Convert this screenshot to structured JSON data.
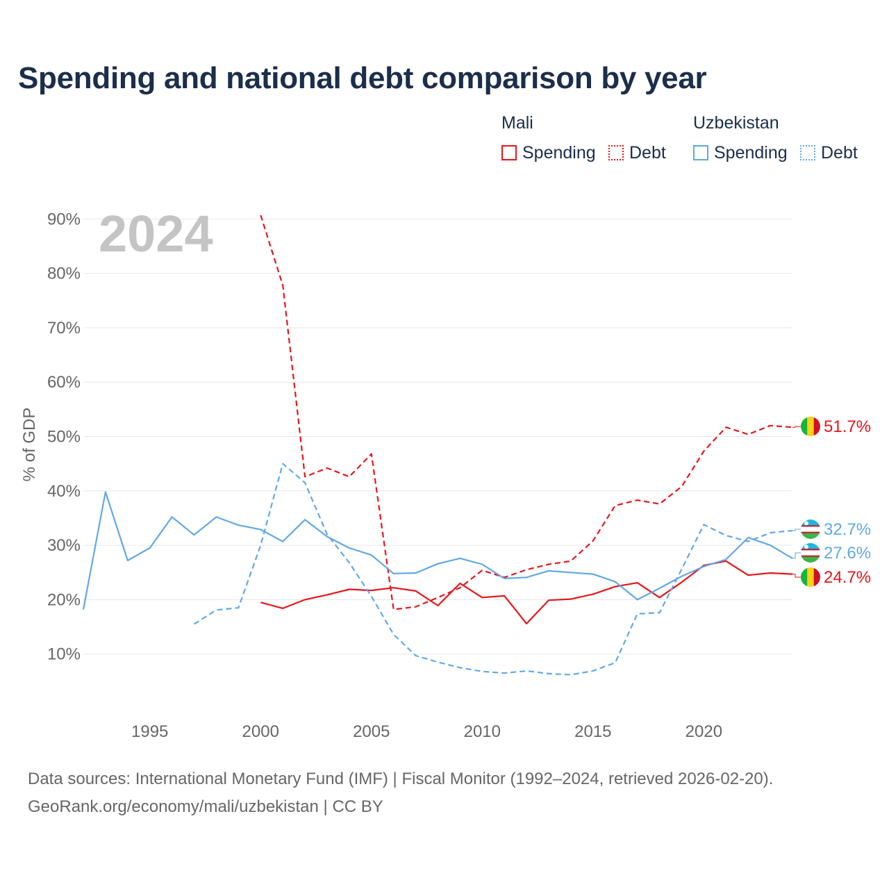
{
  "title": "Spending and national debt comparison by year",
  "legend": {
    "groups": [
      {
        "country": "Mali",
        "spending_label": "Spending",
        "debt_label": "Debt",
        "color": "#e8141a"
      },
      {
        "country": "Uzbekistan",
        "spending_label": "Spending",
        "debt_label": "Debt",
        "color": "#60a8e6"
      }
    ]
  },
  "footer": {
    "line1": "Data sources: International Monetary Fund (IMF) | Fiscal Monitor (1992–2024, retrieved 2026-02-20).",
    "line2": "GeoRank.org/economy/mali/uzbekistan | CC BY"
  },
  "chart_data": {
    "type": "line",
    "title": "Spending and national debt comparison by year",
    "year_watermark": "2024",
    "ylabel": "% of GDP",
    "xlabel": "",
    "xlim": [
      1992,
      2024
    ],
    "ylim": [
      0,
      90
    ],
    "x_ticks": [
      1995,
      2000,
      2005,
      2010,
      2015,
      2020
    ],
    "y_ticks": [
      10,
      20,
      30,
      40,
      50,
      60,
      70,
      80,
      90
    ],
    "y_tick_format": "{v}%",
    "grid": true,
    "series": [
      {
        "name": "Mali Spending",
        "country": "Mali",
        "kind": "spending",
        "color": "#e8141a",
        "dashed": false,
        "end_label": "24.7%",
        "points": [
          [
            2000,
            19.5
          ],
          [
            2001,
            18.4
          ],
          [
            2002,
            20.0
          ],
          [
            2003,
            20.9
          ],
          [
            2004,
            21.9
          ],
          [
            2005,
            21.7
          ],
          [
            2006,
            22.2
          ],
          [
            2007,
            21.6
          ],
          [
            2008,
            18.9
          ],
          [
            2009,
            23.0
          ],
          [
            2010,
            20.4
          ],
          [
            2011,
            20.7
          ],
          [
            2012,
            15.6
          ],
          [
            2013,
            19.9
          ],
          [
            2014,
            20.1
          ],
          [
            2015,
            21.0
          ],
          [
            2016,
            22.4
          ],
          [
            2017,
            23.1
          ],
          [
            2018,
            20.4
          ],
          [
            2019,
            23.2
          ],
          [
            2020,
            26.3
          ],
          [
            2021,
            27.1
          ],
          [
            2022,
            24.5
          ],
          [
            2023,
            24.9
          ],
          [
            2024,
            24.7
          ]
        ]
      },
      {
        "name": "Mali Debt",
        "country": "Mali",
        "kind": "debt",
        "color": "#e8141a",
        "dashed": true,
        "end_label": "51.7%",
        "points": [
          [
            2000,
            90.7
          ],
          [
            2001,
            77.8
          ],
          [
            2002,
            42.6
          ],
          [
            2003,
            44.2
          ],
          [
            2004,
            42.6
          ],
          [
            2005,
            46.8
          ],
          [
            2006,
            18.2
          ],
          [
            2007,
            18.7
          ],
          [
            2008,
            20.4
          ],
          [
            2009,
            22.2
          ],
          [
            2010,
            25.4
          ],
          [
            2011,
            24.1
          ],
          [
            2012,
            25.5
          ],
          [
            2013,
            26.5
          ],
          [
            2014,
            27.1
          ],
          [
            2015,
            30.8
          ],
          [
            2016,
            37.3
          ],
          [
            2017,
            38.3
          ],
          [
            2018,
            37.6
          ],
          [
            2019,
            40.8
          ],
          [
            2020,
            47.3
          ],
          [
            2021,
            51.7
          ],
          [
            2022,
            50.4
          ],
          [
            2023,
            52.0
          ],
          [
            2024,
            51.7
          ]
        ]
      },
      {
        "name": "Uzbekistan Spending",
        "country": "Uzbekistan",
        "kind": "spending",
        "color": "#60a8e6",
        "dashed": false,
        "end_label": "27.6%",
        "points": [
          [
            1992,
            18.2
          ],
          [
            1993,
            39.8
          ],
          [
            1994,
            27.2
          ],
          [
            1995,
            29.5
          ],
          [
            1996,
            35.2
          ],
          [
            1997,
            31.9
          ],
          [
            1998,
            35.2
          ],
          [
            1999,
            33.7
          ],
          [
            2000,
            32.9
          ],
          [
            2001,
            30.7
          ],
          [
            2002,
            34.7
          ],
          [
            2003,
            31.6
          ],
          [
            2004,
            29.5
          ],
          [
            2005,
            28.2
          ],
          [
            2006,
            24.8
          ],
          [
            2007,
            24.9
          ],
          [
            2008,
            26.6
          ],
          [
            2009,
            27.6
          ],
          [
            2010,
            26.5
          ],
          [
            2011,
            23.9
          ],
          [
            2012,
            24.1
          ],
          [
            2013,
            25.3
          ],
          [
            2014,
            25.0
          ],
          [
            2015,
            24.7
          ],
          [
            2016,
            23.3
          ],
          [
            2017,
            20.0
          ],
          [
            2018,
            22.1
          ],
          [
            2019,
            24.3
          ],
          [
            2020,
            26.1
          ],
          [
            2021,
            27.4
          ],
          [
            2022,
            31.4
          ],
          [
            2023,
            30.0
          ],
          [
            2024,
            27.6
          ]
        ]
      },
      {
        "name": "Uzbekistan Debt",
        "country": "Uzbekistan",
        "kind": "debt",
        "color": "#60a8e6",
        "dashed": true,
        "end_label": "32.7%",
        "points": [
          [
            1997,
            15.5
          ],
          [
            1998,
            18.1
          ],
          [
            1999,
            18.5
          ],
          [
            2000,
            30.0
          ],
          [
            2001,
            45.0
          ],
          [
            2002,
            41.5
          ],
          [
            2003,
            32.0
          ],
          [
            2004,
            26.8
          ],
          [
            2005,
            20.6
          ],
          [
            2006,
            13.6
          ],
          [
            2007,
            9.7
          ],
          [
            2008,
            8.5
          ],
          [
            2009,
            7.5
          ],
          [
            2010,
            6.8
          ],
          [
            2011,
            6.5
          ],
          [
            2012,
            6.9
          ],
          [
            2013,
            6.4
          ],
          [
            2014,
            6.2
          ],
          [
            2015,
            6.9
          ],
          [
            2016,
            8.4
          ],
          [
            2017,
            17.4
          ],
          [
            2018,
            17.6
          ],
          [
            2019,
            25.6
          ],
          [
            2020,
            33.8
          ],
          [
            2021,
            31.8
          ],
          [
            2022,
            30.7
          ],
          [
            2023,
            32.3
          ],
          [
            2024,
            32.7
          ]
        ]
      }
    ]
  }
}
